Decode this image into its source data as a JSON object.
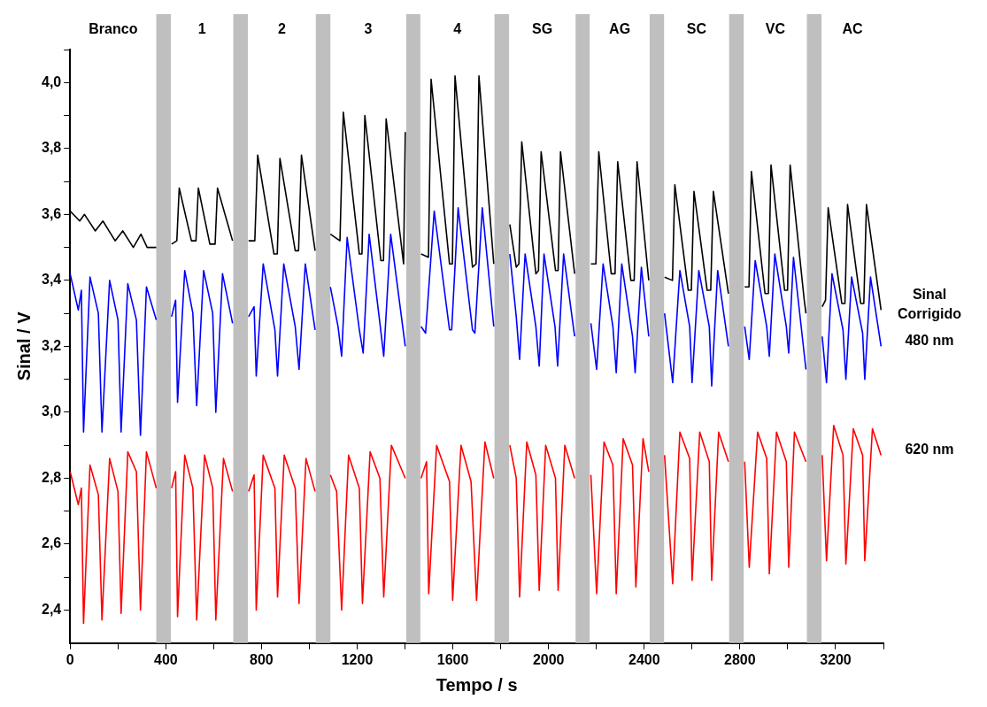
{
  "chart_data": {
    "type": "line",
    "xlabel": "Tempo / s",
    "ylabel": "Sinal / V",
    "xlim": [
      0,
      3400
    ],
    "ylim": [
      2.3,
      4.1
    ],
    "xticks": [
      0,
      {
        "value": 200,
        "label": null
      },
      400,
      {
        "value": 600,
        "label": null
      },
      800,
      {
        "value": 1000,
        "label": null
      },
      1200,
      {
        "value": 1400,
        "label": null
      },
      1600,
      {
        "value": 1800,
        "label": null
      },
      2000,
      {
        "value": 2200,
        "label": null
      },
      2400,
      {
        "value": 2600,
        "label": null
      },
      2800,
      {
        "value": 3000,
        "label": null
      },
      3200,
      {
        "value": 3400,
        "label": null
      }
    ],
    "yticks": [
      {
        "value": 2.4,
        "label": "2,4"
      },
      {
        "value": 2.5,
        "label": null
      },
      {
        "value": 2.6,
        "label": "2,6"
      },
      {
        "value": 2.7,
        "label": null
      },
      {
        "value": 2.8,
        "label": "2,8"
      },
      {
        "value": 2.9,
        "label": null
      },
      {
        "value": 3.0,
        "label": "3,0"
      },
      {
        "value": 3.1,
        "label": null
      },
      {
        "value": 3.2,
        "label": "3,2"
      },
      {
        "value": 3.3,
        "label": null
      },
      {
        "value": 3.4,
        "label": "3,4"
      },
      {
        "value": 3.5,
        "label": null
      },
      {
        "value": 3.6,
        "label": "3,6"
      },
      {
        "value": 3.7,
        "label": null
      },
      {
        "value": 3.8,
        "label": "3,8"
      },
      {
        "value": 3.9,
        "label": null
      },
      {
        "value": 4.0,
        "label": "4,0"
      },
      {
        "value": 4.1,
        "label": null
      }
    ],
    "grid": false,
    "bands": [
      {
        "axis": "x",
        "from": 360,
        "to": 421,
        "color": "#bfbfbf"
      },
      {
        "axis": "x",
        "from": 682,
        "to": 743,
        "color": "#bfbfbf"
      },
      {
        "axis": "x",
        "from": 1027,
        "to": 1088,
        "color": "#bfbfbf"
      },
      {
        "axis": "x",
        "from": 1405,
        "to": 1464,
        "color": "#bfbfbf"
      },
      {
        "axis": "x",
        "from": 1774,
        "to": 1835,
        "color": "#bfbfbf"
      },
      {
        "axis": "x",
        "from": 2113,
        "to": 2172,
        "color": "#bfbfbf"
      },
      {
        "axis": "x",
        "from": 2423,
        "to": 2483,
        "color": "#bfbfbf"
      },
      {
        "axis": "x",
        "from": 2755,
        "to": 2816,
        "color": "#bfbfbf"
      },
      {
        "axis": "x",
        "from": 3080,
        "to": 3141,
        "color": "#bfbfbf"
      }
    ],
    "annotations": [
      "Branco",
      "1",
      "2",
      "3",
      "4",
      "SG",
      "AG",
      "SC",
      "VC",
      "AC"
    ],
    "series": [
      {
        "name": "Sinal Corrigido",
        "color": "#000000",
        "x": [
          0,
          40,
          60,
          105,
          137,
          188,
          220,
          264,
          296,
          322,
          360,
          390,
          424,
          446,
          456,
          507,
          526,
          536,
          584,
          606,
          616,
          679,
          712,
          746,
          772,
          784,
          852,
          866,
          877,
          941,
          955,
          967,
          1024,
          1058,
          1088,
          1128,
          1142,
          1209,
          1220,
          1232,
          1299,
          1310,
          1321,
          1394,
          1401,
          1434,
          1467,
          1498,
          1509,
          1586,
          1598,
          1609,
          1682,
          1697,
          1709,
          1771,
          1805,
          1838,
          1865,
          1876,
          1888,
          1947,
          1958,
          1969,
          2029,
          2040,
          2050,
          2109,
          2142,
          2177,
          2198,
          2210,
          2262,
          2278,
          2289,
          2344,
          2358,
          2370,
          2419,
          2453,
          2485,
          2518,
          2528,
          2584,
          2597,
          2608,
          2663,
          2678,
          2689,
          2752,
          2785,
          2820,
          2838,
          2848,
          2905,
          2919,
          2930,
          2987,
          2999,
          3010,
          3069,
          3076,
          3110,
          3144,
          3158,
          3169,
          3226,
          3239,
          3250,
          3305,
          3318,
          3329,
          3390
        ],
        "values": [
          3.61,
          3.58,
          3.6,
          3.55,
          3.58,
          3.52,
          3.55,
          3.5,
          3.54,
          3.5,
          3.5,
          null,
          3.51,
          3.52,
          3.68,
          3.52,
          3.52,
          3.68,
          3.51,
          3.51,
          3.68,
          3.52,
          null,
          3.52,
          3.52,
          3.78,
          3.48,
          3.48,
          3.77,
          3.49,
          3.49,
          3.78,
          3.49,
          null,
          3.54,
          3.52,
          3.91,
          3.48,
          3.48,
          3.9,
          3.46,
          3.46,
          3.89,
          3.45,
          3.85,
          null,
          3.48,
          3.47,
          4.01,
          3.45,
          3.45,
          4.02,
          3.44,
          3.45,
          4.02,
          3.45,
          null,
          3.57,
          3.44,
          3.45,
          3.82,
          3.42,
          3.43,
          3.79,
          3.43,
          3.43,
          3.79,
          3.42,
          null,
          3.45,
          3.45,
          3.79,
          3.42,
          3.42,
          3.76,
          3.4,
          3.4,
          3.76,
          3.4,
          null,
          3.41,
          3.4,
          3.69,
          3.37,
          3.37,
          3.67,
          3.37,
          3.37,
          3.67,
          3.36,
          null,
          3.38,
          3.38,
          3.73,
          3.36,
          3.36,
          3.75,
          3.37,
          3.37,
          3.75,
          3.34,
          3.3,
          null,
          3.32,
          3.34,
          3.62,
          3.33,
          3.33,
          3.63,
          3.33,
          3.33,
          3.63,
          3.31
        ]
      },
      {
        "name": "480 nm",
        "color": "#0000ff",
        "x": [
          0,
          34,
          47,
          56,
          83,
          118,
          133,
          165,
          200,
          213,
          241,
          277,
          294,
          319,
          360,
          390,
          424,
          441,
          449,
          479,
          513,
          529,
          558,
          596,
          609,
          637,
          679,
          712,
          746,
          769,
          778,
          807,
          856,
          867,
          893,
          941,
          957,
          983,
          1024,
          1058,
          1088,
          1120,
          1135,
          1158,
          1209,
          1225,
          1250,
          1295,
          1311,
          1340,
          1401,
          1434,
          1467,
          1486,
          1522,
          1586,
          1595,
          1622,
          1682,
          1692,
          1723,
          1771,
          1805,
          1838,
          1865,
          1879,
          1902,
          1947,
          1961,
          1981,
          2027,
          2038,
          2063,
          2109,
          2142,
          2177,
          2201,
          2228,
          2269,
          2283,
          2306,
          2351,
          2362,
          2388,
          2419,
          2453,
          2485,
          2519,
          2549,
          2590,
          2600,
          2628,
          2672,
          2682,
          2707,
          2752,
          2785,
          2820,
          2839,
          2864,
          2912,
          2923,
          2946,
          2994,
          3004,
          3024,
          3076,
          3110,
          3144,
          3162,
          3185,
          3231,
          3243,
          3267,
          3313,
          3322,
          3346,
          3390
        ],
        "values": [
          3.42,
          3.31,
          3.37,
          2.94,
          3.41,
          3.3,
          2.94,
          3.4,
          3.28,
          2.94,
          3.39,
          3.28,
          2.93,
          3.38,
          3.28,
          null,
          3.29,
          3.34,
          3.03,
          3.43,
          3.3,
          3.02,
          3.43,
          3.3,
          3.0,
          3.42,
          3.27,
          null,
          3.29,
          3.32,
          3.11,
          3.45,
          3.25,
          3.11,
          3.45,
          3.26,
          3.13,
          3.45,
          3.25,
          null,
          3.38,
          3.26,
          3.17,
          3.53,
          3.25,
          3.18,
          3.54,
          3.27,
          3.17,
          3.54,
          3.2,
          null,
          3.26,
          3.24,
          3.61,
          3.25,
          3.25,
          3.62,
          3.25,
          3.24,
          3.62,
          3.26,
          null,
          3.48,
          3.29,
          3.16,
          3.48,
          3.26,
          3.14,
          3.48,
          3.26,
          3.14,
          3.48,
          3.23,
          null,
          3.27,
          3.13,
          3.45,
          3.26,
          3.12,
          3.45,
          3.23,
          3.12,
          3.44,
          3.23,
          null,
          3.3,
          3.09,
          3.43,
          3.26,
          3.09,
          3.43,
          3.26,
          3.08,
          3.43,
          3.2,
          null,
          3.26,
          3.16,
          3.46,
          3.26,
          3.17,
          3.48,
          3.26,
          3.18,
          3.47,
          3.13,
          null,
          3.23,
          3.09,
          3.42,
          3.25,
          3.1,
          3.41,
          3.24,
          3.1,
          3.41,
          3.2
        ]
      },
      {
        "name": "620 nm",
        "color": "#ff0000",
        "x": [
          0,
          34,
          47,
          56,
          83,
          118,
          133,
          165,
          200,
          213,
          241,
          277,
          294,
          319,
          360,
          390,
          424,
          441,
          449,
          479,
          513,
          529,
          562,
          596,
          609,
          641,
          679,
          712,
          746,
          769,
          778,
          807,
          856,
          867,
          895,
          941,
          957,
          986,
          1024,
          1058,
          1088,
          1114,
          1135,
          1164,
          1209,
          1222,
          1254,
          1295,
          1311,
          1343,
          1401,
          1434,
          1467,
          1490,
          1499,
          1532,
          1586,
          1599,
          1634,
          1676,
          1699,
          1734,
          1771,
          1805,
          1838,
          1865,
          1879,
          1909,
          1947,
          1961,
          1988,
          2029,
          2040,
          2068,
          2109,
          2142,
          2177,
          2201,
          2232,
          2269,
          2283,
          2312,
          2351,
          2365,
          2395,
          2419,
          2453,
          2485,
          2519,
          2549,
          2590,
          2600,
          2632,
          2672,
          2682,
          2711,
          2752,
          2785,
          2820,
          2839,
          2874,
          2912,
          2923,
          2953,
          2994,
          3004,
          3028,
          3076,
          3110,
          3144,
          3162,
          3192,
          3231,
          3243,
          3274,
          3313,
          3322,
          3354,
          3390
        ],
        "values": [
          2.82,
          2.72,
          2.77,
          2.36,
          2.84,
          2.75,
          2.37,
          2.86,
          2.76,
          2.39,
          2.88,
          2.82,
          2.4,
          2.88,
          2.77,
          null,
          2.77,
          2.82,
          2.38,
          2.87,
          2.77,
          2.37,
          2.87,
          2.77,
          2.37,
          2.86,
          2.76,
          null,
          2.76,
          2.81,
          2.4,
          2.87,
          2.77,
          2.44,
          2.87,
          2.77,
          2.42,
          2.86,
          2.76,
          null,
          2.81,
          2.76,
          2.4,
          2.87,
          2.77,
          2.42,
          2.88,
          2.8,
          2.44,
          2.9,
          2.8,
          null,
          2.8,
          2.85,
          2.45,
          2.9,
          2.79,
          2.43,
          2.9,
          2.79,
          2.43,
          2.91,
          2.8,
          null,
          2.9,
          2.8,
          2.44,
          2.91,
          2.81,
          2.46,
          2.9,
          2.8,
          2.46,
          2.9,
          2.8,
          null,
          2.81,
          2.45,
          2.91,
          2.84,
          2.45,
          2.92,
          2.84,
          2.47,
          2.92,
          2.82,
          null,
          2.87,
          2.48,
          2.94,
          2.86,
          2.49,
          2.94,
          2.85,
          2.49,
          2.94,
          2.85,
          null,
          2.85,
          2.53,
          2.94,
          2.86,
          2.51,
          2.94,
          2.85,
          2.53,
          2.94,
          2.85,
          null,
          2.87,
          2.55,
          2.96,
          2.87,
          2.54,
          2.95,
          2.87,
          2.55,
          2.95,
          2.87
        ]
      }
    ]
  }
}
